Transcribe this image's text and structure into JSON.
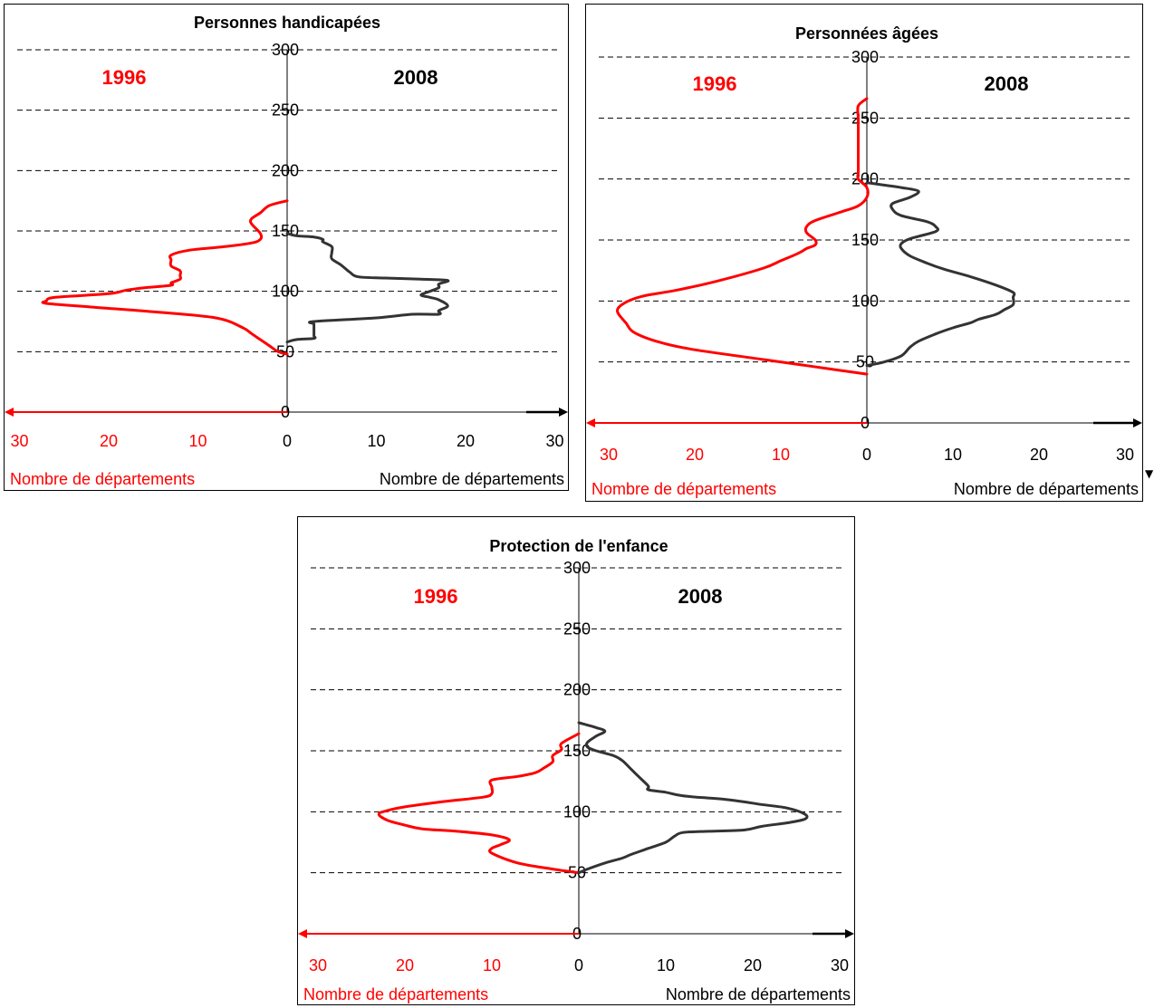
{
  "colors": {
    "series_1996": "#ff0000",
    "series_2008": "#333333",
    "grid": "#000000"
  },
  "corner_marker": "▼",
  "chart_data": [
    {
      "type": "line",
      "title": "Personnes handicapées",
      "label_1996": "1996",
      "label_2008": "2008",
      "xlabel_left": "Nombre de départements",
      "xlabel_right": "Nombre de départements",
      "ylim": [
        0,
        300
      ],
      "yticks": [
        "0",
        "50",
        "100",
        "150",
        "200",
        "250",
        "300"
      ],
      "xlim": [
        -30,
        30
      ],
      "xticks_left": [
        "30",
        "20",
        "10"
      ],
      "xticks_right": [
        "0",
        "10",
        "20",
        "30"
      ],
      "grid": true,
      "series": [
        {
          "year": "1996",
          "side": "left",
          "points": [
            [
              0,
              48
            ],
            [
              -1,
              50
            ],
            [
              -2,
              55
            ],
            [
              -3,
              60
            ],
            [
              -4,
              65
            ],
            [
              -5,
              70
            ],
            [
              -8,
              78
            ],
            [
              -15,
              83
            ],
            [
              -22,
              87
            ],
            [
              -27,
              90
            ],
            [
              -27,
              92
            ],
            [
              -26,
              95
            ],
            [
              -20,
              98
            ],
            [
              -18,
              101
            ],
            [
              -16,
              103
            ],
            [
              -13,
              105
            ],
            [
              -13,
              107
            ],
            [
              -12,
              110
            ],
            [
              -12,
              113
            ],
            [
              -12,
              117
            ],
            [
              -13,
              121
            ],
            [
              -13,
              126
            ],
            [
              -13,
              130
            ],
            [
              -11,
              134
            ],
            [
              -7,
              137
            ],
            [
              -4,
              140
            ],
            [
              -3,
              143
            ],
            [
              -3,
              148
            ],
            [
              -4,
              156
            ],
            [
              -4,
              160
            ],
            [
              -3,
              165
            ],
            [
              -2,
              171
            ],
            [
              0,
              175
            ]
          ]
        },
        {
          "year": "2008",
          "side": "right",
          "points": [
            [
              0,
              58
            ],
            [
              1,
              60
            ],
            [
              3,
              61
            ],
            [
              3,
              63
            ],
            [
              3,
              65
            ],
            [
              3,
              70
            ],
            [
              3,
              73
            ],
            [
              3,
              75
            ],
            [
              10,
              78
            ],
            [
              14,
              81
            ],
            [
              17,
              81
            ],
            [
              17,
              84
            ],
            [
              18,
              88
            ],
            [
              17,
              93
            ],
            [
              16,
              95
            ],
            [
              15,
              97
            ],
            [
              16,
              100
            ],
            [
              17,
              103
            ],
            [
              17,
              106
            ],
            [
              18,
              109
            ],
            [
              15,
              110
            ],
            [
              11,
              111
            ],
            [
              8,
              112
            ],
            [
              7,
              116
            ],
            [
              6,
              122
            ],
            [
              5,
              127
            ],
            [
              5,
              132
            ],
            [
              5,
              137
            ],
            [
              4,
              141
            ],
            [
              4,
              143
            ],
            [
              3,
              145
            ],
            [
              1,
              146
            ],
            [
              0,
              148
            ]
          ]
        }
      ]
    },
    {
      "type": "line",
      "title": "Personnées âgées",
      "label_1996": "1996",
      "label_2008": "2008",
      "xlabel_left": "Nombre de départements",
      "xlabel_right": "Nombre de départements",
      "ylim": [
        0,
        300
      ],
      "yticks": [
        "0",
        "50",
        "100",
        "150",
        "200",
        "250",
        "300"
      ],
      "xlim": [
        -30,
        30
      ],
      "xticks_left": [
        "30",
        "20",
        "10"
      ],
      "xticks_right": [
        "0",
        "10",
        "20",
        "30"
      ],
      "grid": true,
      "series": [
        {
          "year": "1996",
          "side": "left",
          "points": [
            [
              0,
              40
            ],
            [
              -3,
              43
            ],
            [
              -7,
              47
            ],
            [
              -12,
              52
            ],
            [
              -20,
              60
            ],
            [
              -24,
              66
            ],
            [
              -27,
              74
            ],
            [
              -28,
              82
            ],
            [
              -29,
              92
            ],
            [
              -28,
              99
            ],
            [
              -26,
              104
            ],
            [
              -22,
              109
            ],
            [
              -17,
              117
            ],
            [
              -12,
              127
            ],
            [
              -10,
              133
            ],
            [
              -8,
              139
            ],
            [
              -7,
              143
            ],
            [
              -6,
              146
            ],
            [
              -6,
              150
            ],
            [
              -7,
              156
            ],
            [
              -7,
              161
            ],
            [
              -6,
              166
            ],
            [
              -3,
              173
            ],
            [
              -1,
              178
            ],
            [
              0,
              185
            ],
            [
              0,
              193
            ],
            [
              -1,
              200
            ],
            [
              -1,
              205
            ],
            [
              -1,
              210
            ],
            [
              -1,
              220
            ],
            [
              -1,
              230
            ],
            [
              -1,
              240
            ],
            [
              -1,
              250
            ],
            [
              -1,
              260
            ],
            [
              0,
              266
            ]
          ]
        },
        {
          "year": "2008",
          "side": "right",
          "points": [
            [
              0,
              47
            ],
            [
              2,
              50
            ],
            [
              4,
              55
            ],
            [
              5,
              62
            ],
            [
              6,
              67
            ],
            [
              8,
              73
            ],
            [
              10,
              78
            ],
            [
              12,
              82
            ],
            [
              13,
              85
            ],
            [
              15,
              89
            ],
            [
              16,
              93
            ],
            [
              17,
              97
            ],
            [
              17,
              103
            ],
            [
              17,
              107
            ],
            [
              15,
              113
            ],
            [
              12,
              120
            ],
            [
              9,
              126
            ],
            [
              7,
              131
            ],
            [
              5,
              137
            ],
            [
              4,
              143
            ],
            [
              4,
              147
            ],
            [
              5,
              151
            ],
            [
              8,
              157
            ],
            [
              8,
              161
            ],
            [
              7,
              165
            ],
            [
              4,
              170
            ],
            [
              3,
              175
            ],
            [
              3,
              180
            ],
            [
              5,
              185
            ],
            [
              6,
              190
            ],
            [
              4,
              193
            ],
            [
              2,
              195
            ],
            [
              0,
              197
            ]
          ]
        }
      ]
    },
    {
      "type": "line",
      "title": "Protection de l'enfance",
      "label_1996": "1996",
      "label_2008": "2008",
      "xlabel_left": "Nombre de départements",
      "xlabel_right": "Nombre de départements",
      "ylim": [
        0,
        300
      ],
      "yticks": [
        "0",
        "50",
        "100",
        "150",
        "200",
        "250",
        "300"
      ],
      "xlim": [
        -30,
        30
      ],
      "xticks_left": [
        "30",
        "20",
        "10"
      ],
      "xticks_right": [
        "0",
        "10",
        "20",
        "30"
      ],
      "grid": true,
      "series": [
        {
          "year": "1996",
          "side": "left",
          "points": [
            [
              0,
              50
            ],
            [
              -3,
              53
            ],
            [
              -7,
              58
            ],
            [
              -10,
              66
            ],
            [
              -10,
              70
            ],
            [
              -9,
              73
            ],
            [
              -8,
              77
            ],
            [
              -10,
              81
            ],
            [
              -14,
              84
            ],
            [
              -18,
              86
            ],
            [
              -20,
              89
            ],
            [
              -22,
              93
            ],
            [
              -23,
              98
            ],
            [
              -22,
              101
            ],
            [
              -20,
              104
            ],
            [
              -16,
              108
            ],
            [
              -11,
              112
            ],
            [
              -10,
              115
            ],
            [
              -10,
              120
            ],
            [
              -10,
              126
            ],
            [
              -7,
              129
            ],
            [
              -5,
              132
            ],
            [
              -4,
              136
            ],
            [
              -3,
              141
            ],
            [
              -3,
              146
            ],
            [
              -2,
              151
            ],
            [
              -2,
              156
            ],
            [
              0,
              164
            ]
          ]
        },
        {
          "year": "2008",
          "side": "right",
          "points": [
            [
              0,
              50
            ],
            [
              1,
              53
            ],
            [
              3,
              58
            ],
            [
              5,
              62
            ],
            [
              6,
              65
            ],
            [
              8,
              70
            ],
            [
              10,
              75
            ],
            [
              11,
              80
            ],
            [
              12,
              83
            ],
            [
              15,
              84
            ],
            [
              19,
              85
            ],
            [
              21,
              88
            ],
            [
              24,
              91
            ],
            [
              26,
              94
            ],
            [
              26,
              98
            ],
            [
              24,
              103
            ],
            [
              21,
              106
            ],
            [
              17,
              110
            ],
            [
              12,
              113
            ],
            [
              10,
              116
            ],
            [
              8,
              118
            ],
            [
              8,
              121
            ],
            [
              7,
              128
            ],
            [
              6,
              135
            ],
            [
              5,
              142
            ],
            [
              4,
              146
            ],
            [
              2,
              150
            ],
            [
              1,
              153
            ],
            [
              1,
              157
            ],
            [
              2,
              162
            ],
            [
              3,
              166
            ],
            [
              2,
              169
            ],
            [
              0,
              173
            ]
          ]
        }
      ]
    }
  ]
}
